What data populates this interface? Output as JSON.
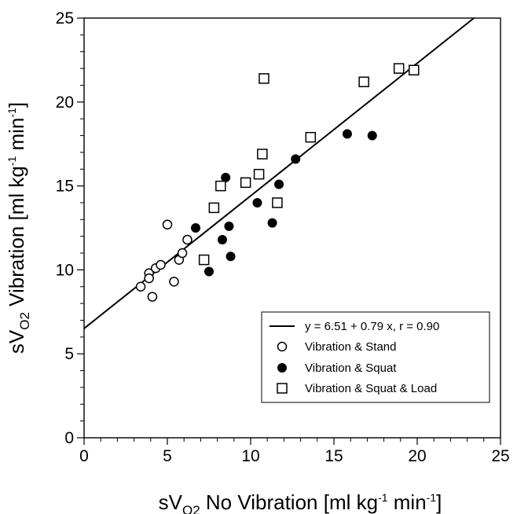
{
  "chart_data": {
    "type": "scatter",
    "title": "",
    "xlabel": {
      "prefix": "sV",
      "sub": "O2",
      "main": " No Vibration [ml kg",
      "sup1": "-1",
      "mid": " min",
      "sup2": "-1",
      "end": "]"
    },
    "ylabel": {
      "prefix": "sV",
      "sub": "O2",
      "main": " Vibration [ml kg",
      "sup1": "-1",
      "mid": " min",
      "sup2": "-1",
      "end": "]"
    },
    "xlim": [
      0,
      25
    ],
    "ylim": [
      0,
      25
    ],
    "xticks": [
      0,
      5,
      10,
      15,
      20,
      25
    ],
    "yticks": [
      0,
      5,
      10,
      15,
      20,
      25
    ],
    "minor_step": 1,
    "grid": false,
    "legend_position": "lower-right",
    "fit": {
      "label": "y = 6.51 + 0.79 x, r = 0.90",
      "intercept": 6.51,
      "slope": 0.79
    },
    "series": [
      {
        "name": "Vibration & Stand",
        "marker": "open-circle",
        "points": [
          [
            3.4,
            9.0
          ],
          [
            3.9,
            9.8
          ],
          [
            3.9,
            9.5
          ],
          [
            4.1,
            8.4
          ],
          [
            4.3,
            10.1
          ],
          [
            4.6,
            10.3
          ],
          [
            5.0,
            12.7
          ],
          [
            5.4,
            9.3
          ],
          [
            5.7,
            10.6
          ],
          [
            5.9,
            11.0
          ],
          [
            6.2,
            11.8
          ]
        ]
      },
      {
        "name": "Vibration & Squat",
        "marker": "filled-circle",
        "points": [
          [
            6.7,
            12.5
          ],
          [
            7.5,
            9.9
          ],
          [
            8.3,
            11.8
          ],
          [
            8.5,
            15.5
          ],
          [
            8.7,
            12.6
          ],
          [
            8.8,
            10.8
          ],
          [
            10.4,
            14.0
          ],
          [
            11.3,
            12.8
          ],
          [
            11.7,
            15.1
          ],
          [
            12.7,
            16.6
          ],
          [
            15.8,
            18.1
          ],
          [
            17.3,
            18.0
          ]
        ]
      },
      {
        "name": "Vibration & Squat & Load",
        "marker": "open-square",
        "points": [
          [
            7.2,
            10.6
          ],
          [
            7.8,
            13.7
          ],
          [
            8.2,
            15.0
          ],
          [
            9.7,
            15.2
          ],
          [
            10.5,
            15.7
          ],
          [
            10.7,
            16.9
          ],
          [
            10.8,
            21.4
          ],
          [
            11.6,
            14.0
          ],
          [
            13.6,
            17.9
          ],
          [
            16.8,
            21.2
          ],
          [
            18.9,
            22.0
          ],
          [
            19.8,
            21.9
          ]
        ]
      }
    ]
  }
}
